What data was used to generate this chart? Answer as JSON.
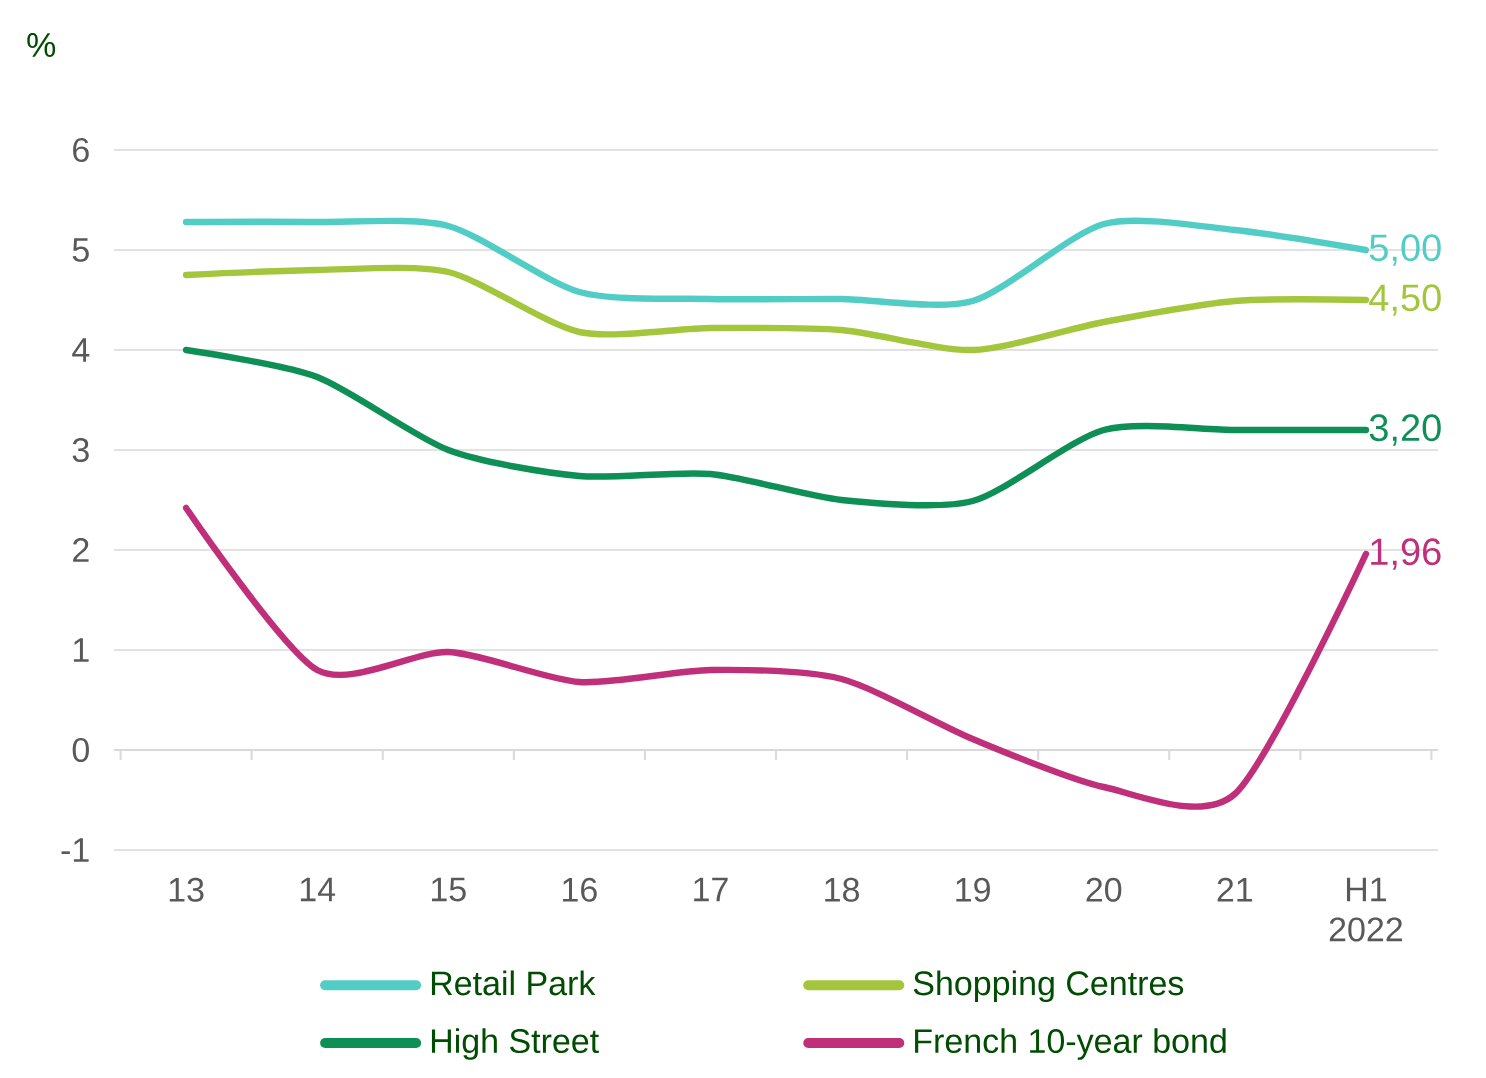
{
  "chart_data": {
    "type": "line",
    "ylabel": "%",
    "categories": [
      "13",
      "14",
      "15",
      "16",
      "17",
      "18",
      "19",
      "20",
      "21",
      "H1 2022"
    ],
    "series": [
      {
        "name": "Retail Park",
        "color": "#52cdc5",
        "values": [
          5.28,
          5.28,
          5.24,
          4.58,
          4.51,
          4.51,
          4.49,
          5.26,
          5.2,
          5.0
        ],
        "value_labels": [
          null,
          null,
          null,
          null,
          null,
          null,
          null,
          null,
          null,
          "5,00"
        ]
      },
      {
        "name": "Shopping Centres",
        "color": "#a3c63c",
        "values": [
          4.75,
          4.8,
          4.78,
          4.18,
          4.22,
          4.2,
          4.0,
          4.28,
          4.49,
          4.5
        ],
        "value_labels": [
          null,
          null,
          null,
          null,
          null,
          null,
          null,
          null,
          null,
          "4,50"
        ]
      },
      {
        "name": "High Street",
        "color": "#0e8f56",
        "values": [
          4.0,
          3.73,
          3.0,
          2.74,
          2.76,
          2.5,
          2.49,
          3.2,
          3.2,
          3.2
        ],
        "value_labels": [
          null,
          null,
          null,
          null,
          null,
          null,
          null,
          null,
          null,
          "3,20"
        ]
      },
      {
        "name": "French 10-year bond",
        "color": "#c0307a",
        "values": [
          2.42,
          0.8,
          0.98,
          0.68,
          0.8,
          0.71,
          0.11,
          -0.37,
          -0.44,
          1.96
        ],
        "value_labels": [
          null,
          null,
          null,
          null,
          null,
          null,
          null,
          null,
          null,
          "1,96"
        ]
      }
    ],
    "ylim": [
      -1,
      6
    ],
    "yticks": [
      -1,
      0,
      1,
      2,
      3,
      4,
      5,
      6
    ],
    "grid": "y",
    "legend": "bottom"
  }
}
